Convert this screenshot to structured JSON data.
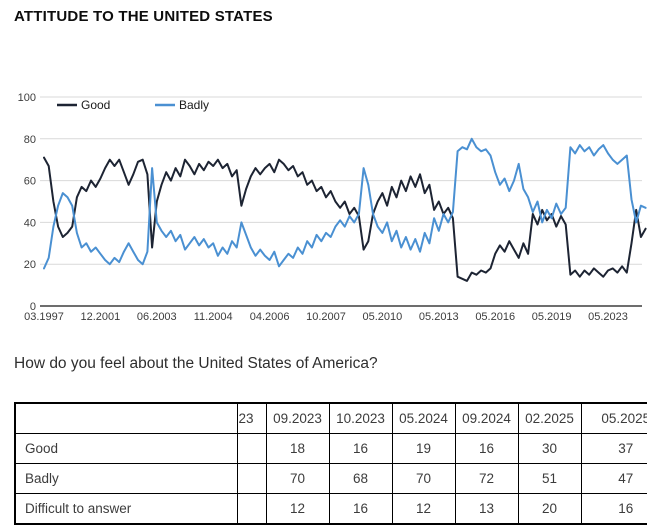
{
  "page": {
    "title": "ATTITUDE TO THE UNITED STATES",
    "question": "How do you feel about the United States of America?"
  },
  "chart_data": {
    "type": "line",
    "title": "",
    "xlabel": "",
    "ylabel": "",
    "ylim": [
      0,
      100
    ],
    "yticks": [
      0,
      20,
      40,
      60,
      80,
      100
    ],
    "grid": true,
    "legend_position": "top-left",
    "x_tick_labels": [
      "03.1997",
      "12.2001",
      "06.2003",
      "11.2004",
      "04.2006",
      "10.2007",
      "05.2010",
      "05.2013",
      "05.2016",
      "05.2019",
      "05.2023"
    ],
    "ticks_every_n_points": 12,
    "series": [
      {
        "name": "Good",
        "color": "#1d2433",
        "values": [
          71,
          67,
          50,
          38,
          33,
          35,
          38,
          52,
          57,
          55,
          60,
          57,
          61,
          66,
          70,
          67,
          70,
          64,
          58,
          63,
          69,
          70,
          63,
          28,
          50,
          58,
          64,
          60,
          66,
          62,
          70,
          67,
          63,
          68,
          65,
          69,
          67,
          70,
          66,
          68,
          62,
          65,
          48,
          56,
          62,
          66,
          63,
          66,
          68,
          64,
          70,
          68,
          65,
          67,
          62,
          64,
          58,
          60,
          55,
          57,
          52,
          55,
          50,
          47,
          50,
          44,
          47,
          43,
          27,
          31,
          44,
          50,
          54,
          48,
          57,
          52,
          60,
          55,
          62,
          57,
          63,
          54,
          58,
          46,
          50,
          44,
          47,
          42,
          14,
          13,
          12,
          16,
          15,
          17,
          16,
          18,
          25,
          29,
          26,
          31,
          27,
          23,
          30,
          25,
          44,
          39,
          46,
          41,
          44,
          38,
          43,
          39,
          15,
          17,
          14,
          17,
          15,
          18,
          16,
          14,
          17,
          18,
          16,
          19,
          16,
          30,
          46,
          33,
          37
        ]
      },
      {
        "name": "Badly",
        "color": "#4a90d2",
        "values": [
          18,
          23,
          38,
          48,
          54,
          52,
          48,
          35,
          28,
          30,
          26,
          28,
          25,
          22,
          20,
          23,
          21,
          26,
          30,
          26,
          22,
          20,
          26,
          66,
          40,
          36,
          33,
          36,
          31,
          34,
          27,
          30,
          33,
          29,
          32,
          28,
          30,
          24,
          28,
          25,
          31,
          28,
          40,
          34,
          28,
          24,
          27,
          24,
          22,
          26,
          19,
          22,
          25,
          23,
          28,
          25,
          31,
          28,
          34,
          31,
          35,
          33,
          38,
          41,
          38,
          43,
          40,
          44,
          66,
          58,
          44,
          38,
          35,
          40,
          31,
          36,
          28,
          33,
          27,
          32,
          26,
          35,
          30,
          42,
          36,
          44,
          40,
          45,
          74,
          76,
          75,
          80,
          76,
          74,
          75,
          72,
          64,
          58,
          61,
          55,
          60,
          68,
          56,
          52,
          45,
          50,
          40,
          46,
          42,
          49,
          44,
          47,
          76,
          73,
          77,
          74,
          76,
          72,
          75,
          77,
          73,
          70,
          68,
          70,
          72,
          51,
          40,
          48,
          47
        ]
      }
    ]
  },
  "table": {
    "columns": [
      "",
      "23",
      "09.2023",
      "10.2023",
      "05.2024",
      "09.2024",
      "02.2025",
      "05.2025"
    ],
    "rows": [
      {
        "label": "Good",
        "values": [
          "",
          "18",
          "16",
          "19",
          "16",
          "30",
          "37"
        ]
      },
      {
        "label": "Badly",
        "values": [
          "",
          "70",
          "68",
          "70",
          "72",
          "51",
          "47"
        ]
      },
      {
        "label": "Difficult to answer",
        "values": [
          "",
          "12",
          "16",
          "12",
          "13",
          "20",
          "16"
        ]
      }
    ]
  }
}
